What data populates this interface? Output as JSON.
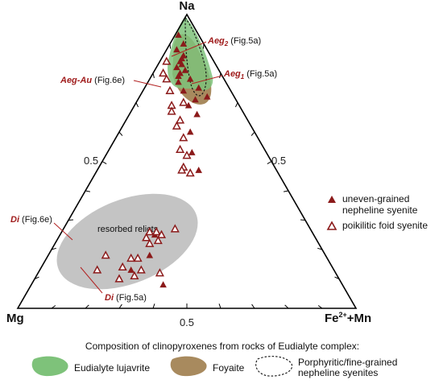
{
  "chart_data": {
    "type": "scatter",
    "subtype": "ternary",
    "apex_labels": {
      "top": "Na",
      "left": "Mg",
      "right_main": "Fe",
      "right_sup": "2+",
      "right_suffix": "+Mn"
    },
    "tick_labels": {
      "left": "0.5",
      "right": "0.5",
      "bottom": "0.5"
    },
    "series": [
      {
        "name": "uneven-grained nepheline syenite",
        "marker": "filled-triangle",
        "color": "#8b1a1a",
        "points": [
          {
            "na": 0.93,
            "mg": 0.06,
            "fe": 0.01
          },
          {
            "na": 0.9,
            "mg": 0.06,
            "fe": 0.04
          },
          {
            "na": 0.88,
            "mg": 0.09,
            "fe": 0.03
          },
          {
            "na": 0.86,
            "mg": 0.08,
            "fe": 0.06
          },
          {
            "na": 0.85,
            "mg": 0.09,
            "fe": 0.06
          },
          {
            "na": 0.84,
            "mg": 0.1,
            "fe": 0.06
          },
          {
            "na": 0.83,
            "mg": 0.1,
            "fe": 0.07
          },
          {
            "na": 0.82,
            "mg": 0.12,
            "fe": 0.06
          },
          {
            "na": 0.81,
            "mg": 0.1,
            "fe": 0.09
          },
          {
            "na": 0.8,
            "mg": 0.12,
            "fe": 0.08
          },
          {
            "na": 0.79,
            "mg": 0.13,
            "fe": 0.08
          },
          {
            "na": 0.78,
            "mg": 0.1,
            "fe": 0.12
          },
          {
            "na": 0.77,
            "mg": 0.14,
            "fe": 0.09
          },
          {
            "na": 0.75,
            "mg": 0.09,
            "fe": 0.16
          },
          {
            "na": 0.74,
            "mg": 0.14,
            "fe": 0.12
          },
          {
            "na": 0.72,
            "mg": 0.08,
            "fe": 0.2
          },
          {
            "na": 0.71,
            "mg": 0.12,
            "fe": 0.17
          },
          {
            "na": 0.69,
            "mg": 0.15,
            "fe": 0.16
          },
          {
            "na": 0.66,
            "mg": 0.14,
            "fe": 0.2
          },
          {
            "na": 0.6,
            "mg": 0.19,
            "fe": 0.21
          },
          {
            "na": 0.53,
            "mg": 0.22,
            "fe": 0.25
          },
          {
            "na": 0.47,
            "mg": 0.23,
            "fe": 0.3
          },
          {
            "na": 0.25,
            "mg": 0.47,
            "fe": 0.28
          },
          {
            "na": 0.18,
            "mg": 0.52,
            "fe": 0.3
          },
          {
            "na": 0.13,
            "mg": 0.6,
            "fe": 0.27
          },
          {
            "na": 0.08,
            "mg": 0.53,
            "fe": 0.39
          }
        ]
      },
      {
        "name": "poikilitic foid syenite",
        "marker": "open-triangle",
        "color": "#8b1a1a",
        "points": [
          {
            "na": 0.84,
            "mg": 0.14,
            "fe": 0.02
          },
          {
            "na": 0.8,
            "mg": 0.17,
            "fe": 0.03
          },
          {
            "na": 0.78,
            "mg": 0.17,
            "fe": 0.05
          },
          {
            "na": 0.74,
            "mg": 0.18,
            "fe": 0.08
          },
          {
            "na": 0.7,
            "mg": 0.16,
            "fe": 0.14
          },
          {
            "na": 0.69,
            "mg": 0.2,
            "fe": 0.11
          },
          {
            "na": 0.67,
            "mg": 0.21,
            "fe": 0.12
          },
          {
            "na": 0.64,
            "mg": 0.2,
            "fe": 0.16
          },
          {
            "na": 0.62,
            "mg": 0.22,
            "fe": 0.16
          },
          {
            "na": 0.58,
            "mg": 0.22,
            "fe": 0.2
          },
          {
            "na": 0.54,
            "mg": 0.25,
            "fe": 0.21
          },
          {
            "na": 0.52,
            "mg": 0.24,
            "fe": 0.24
          },
          {
            "na": 0.48,
            "mg": 0.27,
            "fe": 0.25
          },
          {
            "na": 0.47,
            "mg": 0.28,
            "fe": 0.25
          },
          {
            "na": 0.46,
            "mg": 0.26,
            "fe": 0.28
          },
          {
            "na": 0.26,
            "mg": 0.48,
            "fe": 0.26
          },
          {
            "na": 0.26,
            "mg": 0.46,
            "fe": 0.28
          },
          {
            "na": 0.25,
            "mg": 0.45,
            "fe": 0.3
          },
          {
            "na": 0.24,
            "mg": 0.5,
            "fe": 0.26
          },
          {
            "na": 0.23,
            "mg": 0.47,
            "fe": 0.3
          },
          {
            "na": 0.27,
            "mg": 0.4,
            "fe": 0.33
          },
          {
            "na": 0.22,
            "mg": 0.5,
            "fe": 0.28
          },
          {
            "na": 0.18,
            "mg": 0.65,
            "fe": 0.17
          },
          {
            "na": 0.17,
            "mg": 0.56,
            "fe": 0.27
          },
          {
            "na": 0.17,
            "mg": 0.58,
            "fe": 0.25
          },
          {
            "na": 0.14,
            "mg": 0.62,
            "fe": 0.24
          },
          {
            "na": 0.13,
            "mg": 0.7,
            "fe": 0.17
          },
          {
            "na": 0.13,
            "mg": 0.57,
            "fe": 0.3
          },
          {
            "na": 0.12,
            "mg": 0.52,
            "fe": 0.36
          },
          {
            "na": 0.11,
            "mg": 0.6,
            "fe": 0.29
          },
          {
            "na": 0.1,
            "mg": 0.65,
            "fe": 0.25
          }
        ]
      }
    ],
    "fields": [
      {
        "name": "Eudialyte lujavrite",
        "color": "#7ec27a"
      },
      {
        "name": "Foyaite",
        "color": "#a88a5e"
      },
      {
        "name": "Porphyritic/fine-grained nepheline syenites",
        "style": "dashed-outline"
      },
      {
        "name": "resorbed relicts",
        "color": "#bdbdbd"
      }
    ],
    "annotations": [
      {
        "bold": "Aeg",
        "sub": "2",
        "rest": " (Fig.5a)"
      },
      {
        "bold": "Aeg",
        "sub": "1",
        "rest": " (Fig.5a)"
      },
      {
        "bold": "Aeg-Au",
        "sub": "",
        "rest": " (Fig.6e)"
      },
      {
        "bold": "Di",
        "sub": "",
        "rest": " (Fig.6e)"
      },
      {
        "bold": "Di",
        "sub": "",
        "rest": " (Fig.5a)"
      }
    ],
    "region_label": "resorbed relicts",
    "legend": {
      "placement": "right",
      "items": [
        {
          "line1": "uneven-grained",
          "line2": "nepheline syenite",
          "marker": "filled-triangle"
        },
        {
          "line1": "poikilitic foid syenite",
          "line2": "",
          "marker": "open-triangle"
        }
      ]
    },
    "caption": "Composition of clinopyroxenes from rocks of Eudialyte complex:",
    "field_legend": [
      {
        "label": "Eudialyte lujavrite",
        "line2": "",
        "swatch": "green"
      },
      {
        "label": "Foyaite",
        "line2": "",
        "swatch": "brown"
      },
      {
        "label": "Porphyritic/fine-grained",
        "line2": "nepheline syenites",
        "swatch": "dashed"
      }
    ]
  }
}
